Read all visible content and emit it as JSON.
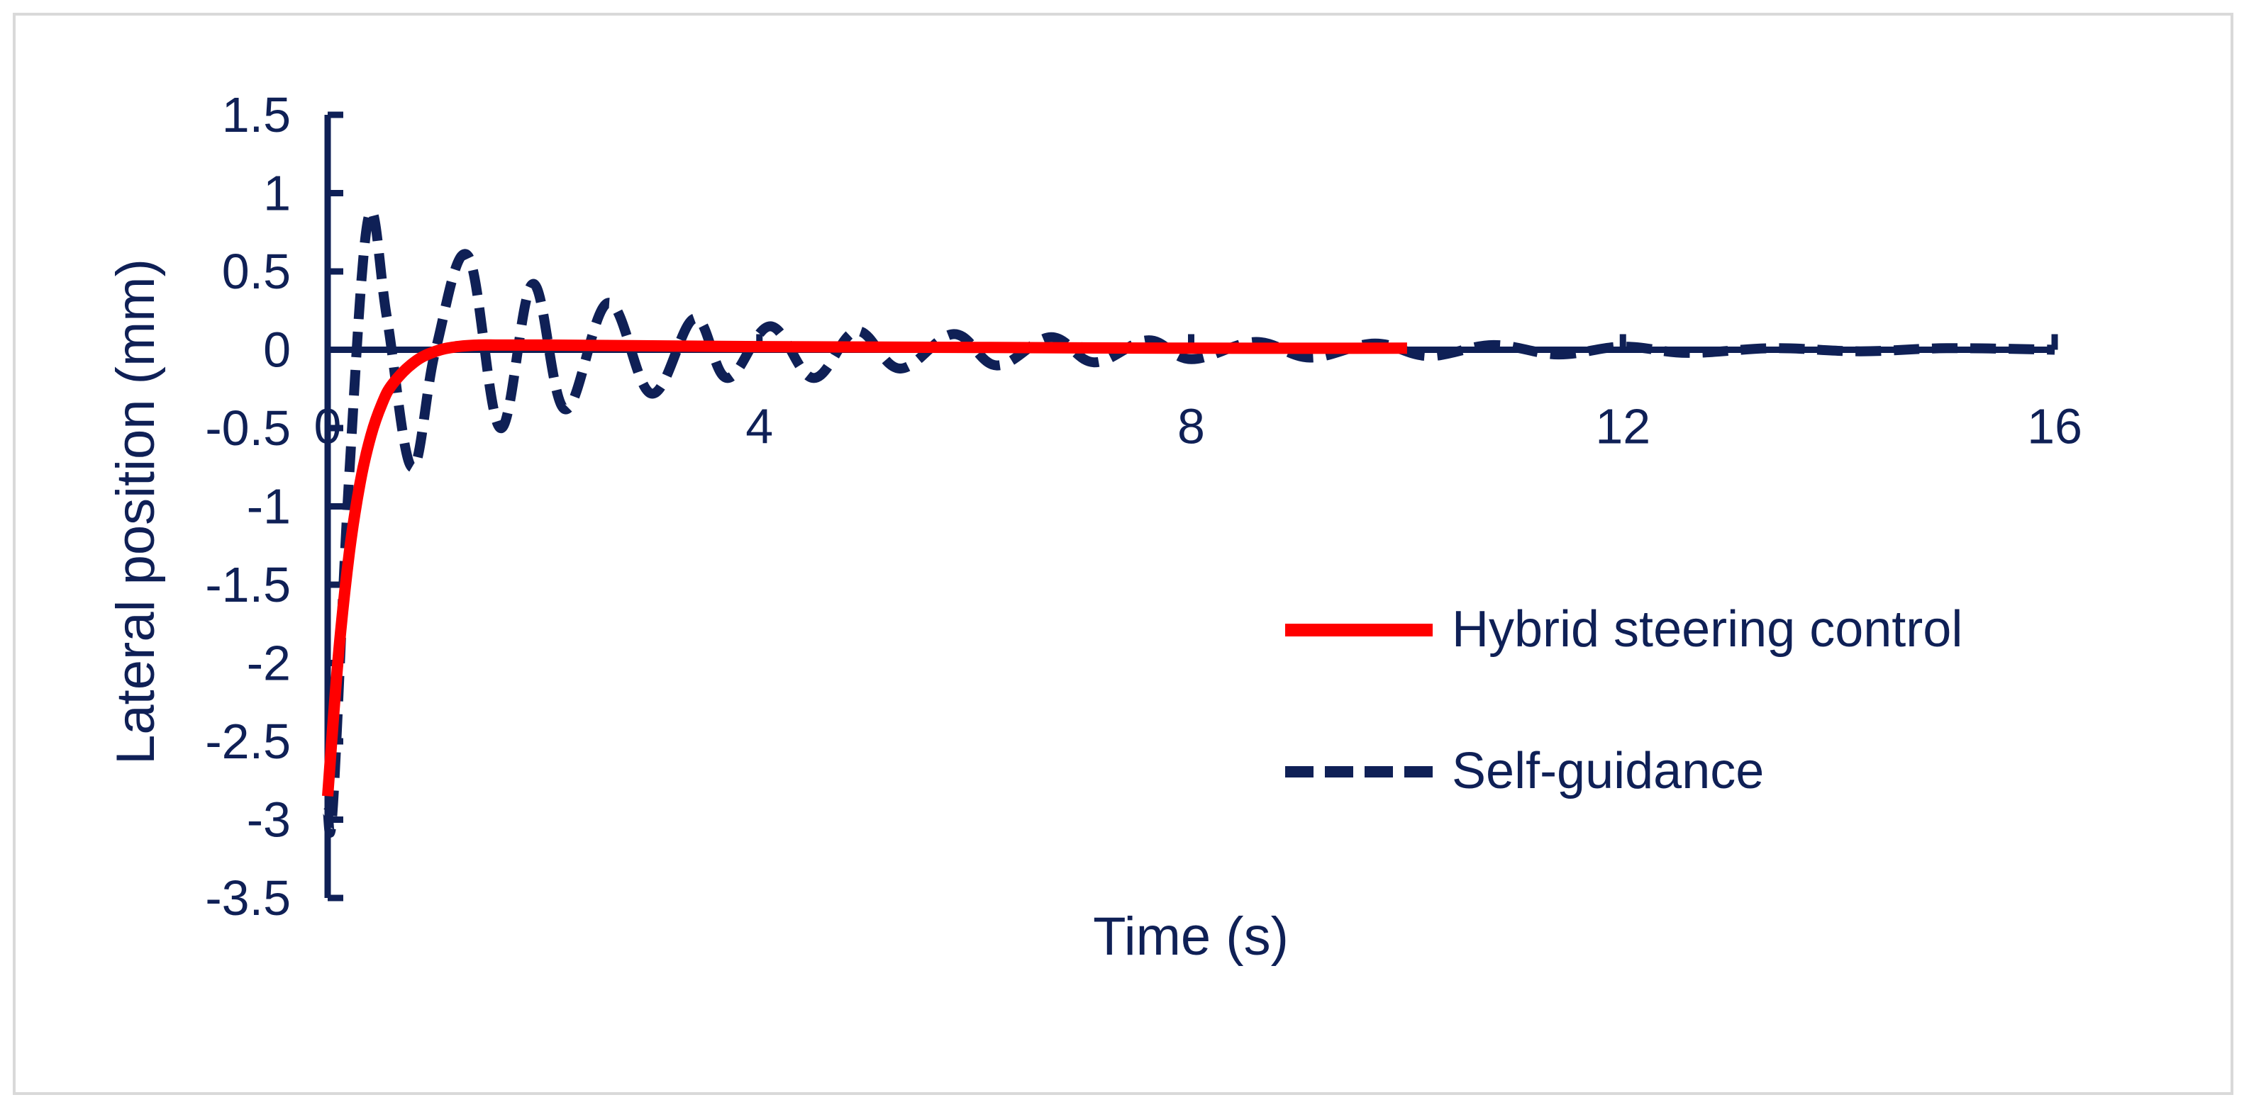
{
  "colors": {
    "axis": "#0f2056",
    "text": "#0f2056",
    "hybrid": "#ff0000",
    "self_guidance": "#0f2056",
    "frame": "#d9d9d9"
  },
  "chart_data": {
    "type": "line",
    "title": "",
    "xlabel": "Time (s)",
    "ylabel": "Lateral position (mm)",
    "xlim": [
      0,
      16
    ],
    "ylim": [
      -3.5,
      1.5
    ],
    "xticks": [
      0,
      4,
      8,
      12,
      16
    ],
    "xtick_labels": [
      "0",
      "4",
      "8",
      "12",
      "16"
    ],
    "yticks": [
      1.5,
      1,
      0.5,
      0,
      -0.5,
      -1,
      -1.5,
      -2,
      -2.5,
      -3,
      -3.5
    ],
    "ytick_labels": [
      "1.5",
      "1",
      "0.5",
      "0",
      "-0.5",
      "-1",
      "-1.5",
      "-2",
      "-2.5",
      "-3",
      "-3.5"
    ],
    "grid": false,
    "legend_position": "right",
    "series": [
      {
        "name": "Hybrid steering control",
        "style": "solid",
        "x": [
          0,
          0.1,
          0.2,
          0.3,
          0.4,
          0.5,
          0.6,
          0.8,
          1.0,
          1.2,
          1.4,
          1.6,
          2.0,
          3.0,
          4.0,
          6.0,
          8.0,
          10.0
        ],
        "y": [
          -2.85,
          -1.95,
          -1.3,
          -0.85,
          -0.55,
          -0.35,
          -0.22,
          -0.08,
          -0.01,
          0.02,
          0.03,
          0.03,
          0.03,
          0.025,
          0.02,
          0.015,
          0.01,
          0.01
        ]
      },
      {
        "name": "Self-guidance",
        "style": "dashed",
        "x": [
          0,
          0.05,
          0.2,
          0.38,
          0.55,
          0.78,
          1.0,
          1.3,
          1.6,
          1.9,
          2.2,
          2.6,
          3.0,
          3.4,
          3.7,
          4.1,
          4.5,
          4.9,
          5.3,
          5.8,
          6.2,
          6.7,
          7.1,
          7.6,
          8.0,
          8.6,
          9.1,
          9.7,
          10.2,
          10.8,
          11.4,
          12.0,
          12.6,
          13.4,
          14.2,
          15.0,
          16.0
        ],
        "y": [
          -2.95,
          -2.9,
          -0.8,
          0.85,
          0.2,
          -0.75,
          0.0,
          0.6,
          -0.5,
          0.42,
          -0.38,
          0.3,
          -0.28,
          0.2,
          -0.18,
          0.15,
          -0.18,
          0.12,
          -0.12,
          0.1,
          -0.1,
          0.08,
          -0.08,
          0.06,
          -0.06,
          0.05,
          -0.05,
          0.04,
          -0.04,
          0.03,
          -0.03,
          0.02,
          -0.02,
          0.01,
          -0.01,
          0.01,
          0.0
        ]
      }
    ]
  }
}
